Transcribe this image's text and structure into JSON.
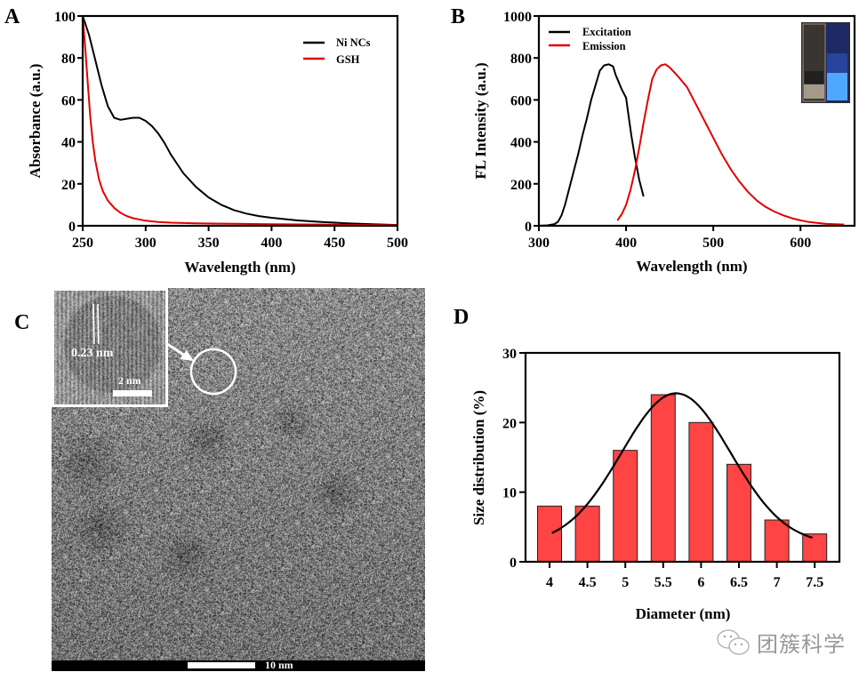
{
  "panels": {
    "a": "A",
    "b": "B",
    "c": "C",
    "d": "D"
  },
  "chart_data": [
    {
      "id": "A",
      "type": "line",
      "title": "",
      "xlabel": "Wavelength (nm)",
      "ylabel": "Absorbance (a.u.)",
      "xlim": [
        250,
        500
      ],
      "ylim": [
        0,
        100
      ],
      "xticks": [
        250,
        300,
        350,
        400,
        450,
        500
      ],
      "yticks": [
        0,
        20,
        40,
        60,
        80,
        100
      ],
      "legend_position": "top-right",
      "series": [
        {
          "name": "Ni NCs",
          "color": "#000000",
          "x": [
            250,
            255,
            260,
            265,
            270,
            275,
            280,
            285,
            290,
            295,
            300,
            305,
            310,
            315,
            320,
            330,
            340,
            350,
            360,
            370,
            380,
            390,
            400,
            420,
            440,
            460,
            480,
            500
          ],
          "y": [
            100,
            91,
            79,
            67,
            57,
            51.5,
            50.5,
            51,
            51.5,
            51.5,
            50,
            47.5,
            44,
            39.5,
            34,
            25,
            18.5,
            13.5,
            10,
            7.5,
            5.8,
            4.6,
            3.8,
            2.6,
            1.8,
            1.2,
            0.7,
            0.4
          ]
        },
        {
          "name": "GSH",
          "color": "#e30000",
          "x": [
            250,
            252,
            254,
            256,
            258,
            260,
            263,
            266,
            270,
            275,
            280,
            285,
            290,
            300,
            310,
            320,
            340,
            360,
            400,
            450,
            500
          ],
          "y": [
            100,
            85,
            68,
            52,
            40,
            31,
            22,
            16.5,
            12,
            8.5,
            6.2,
            4.6,
            3.6,
            2.4,
            1.8,
            1.5,
            1.2,
            1.0,
            0.7,
            0.5,
            0.3
          ]
        }
      ]
    },
    {
      "id": "B",
      "type": "line",
      "title": "",
      "xlabel": "Wavelength (nm)",
      "ylabel": "FL Intensity (a.u.)",
      "xlim": [
        300,
        662
      ],
      "ylim": [
        0,
        1000
      ],
      "xticks": [
        300,
        400,
        500,
        600
      ],
      "yticks": [
        0,
        200,
        400,
        600,
        800,
        1000
      ],
      "legend_position": "top-left",
      "series": [
        {
          "name": "Excitation",
          "color": "#000000",
          "x": [
            300,
            310,
            318,
            322,
            326,
            330,
            335,
            340,
            345,
            350,
            355,
            360,
            365,
            370,
            375,
            380,
            385,
            388,
            390,
            395,
            400,
            403,
            406,
            410,
            415,
            420
          ],
          "y": [
            0,
            2,
            8,
            20,
            50,
            100,
            180,
            260,
            340,
            430,
            510,
            600,
            670,
            740,
            765,
            770,
            760,
            720,
            700,
            650,
            610,
            520,
            430,
            330,
            220,
            140
          ]
        },
        {
          "name": "Emission",
          "color": "#e30000",
          "x": [
            390,
            395,
            400,
            405,
            410,
            415,
            420,
            425,
            430,
            435,
            440,
            445,
            450,
            460,
            470,
            480,
            490,
            500,
            510,
            520,
            530,
            540,
            550,
            560,
            570,
            580,
            590,
            600,
            610,
            620,
            630,
            640,
            650
          ],
          "y": [
            25,
            55,
            100,
            170,
            260,
            370,
            490,
            600,
            700,
            745,
            765,
            770,
            755,
            710,
            660,
            580,
            500,
            420,
            340,
            270,
            210,
            160,
            120,
            90,
            68,
            50,
            36,
            26,
            18,
            13,
            9,
            7,
            6
          ]
        }
      ],
      "inset_photo": {
        "left_vial_color": "#3a3530",
        "right_vial_color": "#4fa8ff"
      }
    },
    {
      "id": "D",
      "type": "bar",
      "title": "",
      "xlabel": "Diameter (nm)",
      "ylabel": "Size distribution (%)",
      "ylim": [
        0,
        30
      ],
      "yticks": [
        0,
        10,
        20,
        30
      ],
      "categories": [
        "4",
        "4.5",
        "5",
        "5.5",
        "6",
        "6.5",
        "7",
        "7.5"
      ],
      "values": [
        8,
        8,
        16,
        24,
        20,
        14,
        6,
        4
      ],
      "bar_color": "#ff4444",
      "fit": {
        "type": "gaussian",
        "color": "#000000",
        "x_start": 4.03,
        "x_end": 7.47,
        "peak_x": 5.67,
        "peak_y": 24.2,
        "sigma": 0.72,
        "baseline": 2.5
      }
    }
  ],
  "tem": {
    "inset_spacing_label": "0.23 nm",
    "inset_scale_label": "2 nm",
    "main_scale_label": "10 nm"
  },
  "watermark": {
    "text": "团簇科学",
    "icon": "wechat-icon"
  }
}
